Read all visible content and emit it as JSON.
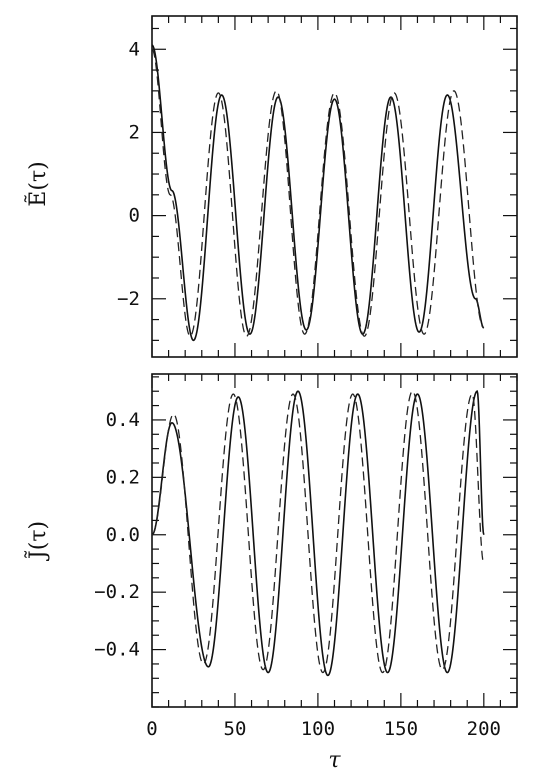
{
  "chart_data": [
    {
      "type": "line",
      "panel": "top",
      "ylabel": "Ẽ(τ)",
      "xlim": [
        0,
        220
      ],
      "ylim": [
        -3.4,
        4.8
      ],
      "xticks": [
        0,
        50,
        100,
        150,
        200
      ],
      "yticks": [
        -2,
        0,
        2,
        4
      ],
      "ytick_labels": [
        "−2",
        "0",
        "2",
        "4"
      ],
      "series": [
        {
          "style": "solid",
          "x": [
            0,
            12,
            25,
            42,
            59,
            76,
            93,
            110,
            127,
            144,
            161,
            178,
            195,
            200
          ],
          "y": [
            4.1,
            0.6,
            -3.0,
            2.9,
            -2.85,
            2.85,
            -2.75,
            2.8,
            -2.85,
            2.85,
            -2.8,
            2.9,
            -2.0,
            -2.7
          ]
        },
        {
          "style": "dashed",
          "x": [
            0,
            11,
            23,
            40,
            57,
            75,
            92,
            110,
            128,
            146,
            164,
            182,
            200
          ],
          "y": [
            4.0,
            0.5,
            -2.9,
            2.95,
            -2.9,
            3.0,
            -2.85,
            2.95,
            -2.9,
            2.95,
            -2.85,
            3.0,
            -2.7
          ]
        }
      ]
    },
    {
      "type": "line",
      "panel": "bottom",
      "ylabel": "J̃(τ)",
      "xlabel": "τ",
      "xlim": [
        0,
        220
      ],
      "ylim": [
        -0.6,
        0.56
      ],
      "xticks": [
        0,
        50,
        100,
        150,
        200
      ],
      "xtick_labels": [
        "0",
        "50",
        "100",
        "150",
        "200"
      ],
      "yticks": [
        -0.4,
        -0.2,
        0.0,
        0.2,
        0.4
      ],
      "ytick_labels": [
        "−0.4",
        "−0.2",
        "0.0",
        "0.2",
        "0.4"
      ],
      "series": [
        {
          "style": "solid",
          "x": [
            0,
            12,
            34,
            52,
            70,
            88,
            106,
            124,
            142,
            160,
            178,
            196,
            200
          ],
          "y": [
            0.0,
            0.39,
            -0.46,
            0.48,
            -0.48,
            0.5,
            -0.49,
            0.49,
            -0.48,
            0.49,
            -0.48,
            0.5,
            0.0
          ]
        },
        {
          "style": "dashed",
          "x": [
            0,
            13,
            31,
            49,
            67,
            85,
            103,
            121,
            139,
            157,
            175,
            193,
            200
          ],
          "y": [
            0.0,
            0.42,
            -0.45,
            0.49,
            -0.47,
            0.49,
            -0.48,
            0.49,
            -0.48,
            0.5,
            -0.47,
            0.49,
            -0.1
          ]
        }
      ]
    }
  ]
}
